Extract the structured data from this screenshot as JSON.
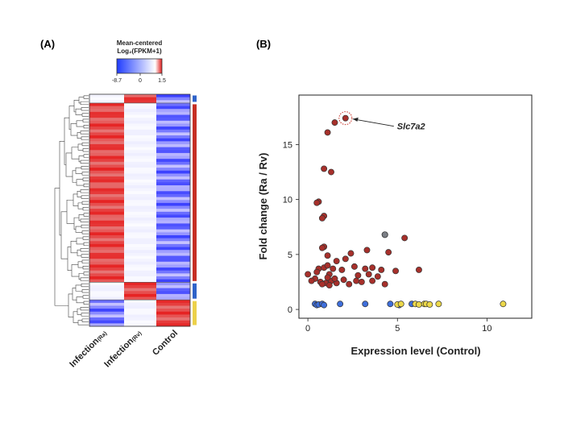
{
  "chart_data": [
    {
      "panel": "(A)",
      "type": "heatmap",
      "legend": {
        "title_line1": "Mean-centered",
        "title_line2": "Log₂(FPKM+1)",
        "ticks": [
          "-8.7",
          "0",
          "1.5"
        ],
        "colors": {
          "low": "#1f3cff",
          "mid": "#ffffff",
          "high": "#e01919"
        }
      },
      "columns": [
        {
          "main": "Infection",
          "sub": "(Ra)"
        },
        {
          "main": "Infection",
          "sub": "(Rv)"
        },
        {
          "main": "Control",
          "sub": ""
        }
      ],
      "cluster_colors": [
        "#2f63c9",
        "#c62f23",
        "#2f63c9",
        "#ecd14a"
      ],
      "cluster_sizes": [
        3,
        61,
        6,
        9
      ]
    },
    {
      "panel": "(B)",
      "type": "scatter",
      "xlabel": "Expression level (Control)",
      "ylabel": "Fold change (Ra / Rv)",
      "xlim": [
        -0.5,
        12.5
      ],
      "ylim": [
        -0.8,
        19.5
      ],
      "xticks": [
        0,
        5,
        10
      ],
      "yticks": [
        0,
        5,
        10,
        15
      ],
      "annotation": {
        "text": "Slc7a2",
        "x": 2.1,
        "y": 17.4
      },
      "series": [
        {
          "color": "#a7302b",
          "points": [
            [
              2.1,
              17.4
            ],
            [
              1.5,
              17.0
            ],
            [
              1.1,
              16.1
            ],
            [
              0.9,
              12.8
            ],
            [
              1.3,
              12.5
            ],
            [
              0.6,
              9.8
            ],
            [
              0.5,
              9.7
            ],
            [
              0.9,
              8.5
            ],
            [
              0.8,
              8.3
            ],
            [
              0.9,
              5.7
            ],
            [
              0.8,
              5.6
            ],
            [
              5.4,
              6.5
            ],
            [
              4.3,
              6.8
            ],
            [
              4.5,
              5.2
            ],
            [
              3.3,
              5.4
            ],
            [
              2.4,
              5.1
            ],
            [
              1.1,
              4.9
            ],
            [
              2.1,
              4.6
            ],
            [
              1.6,
              4.4
            ],
            [
              6.2,
              3.6
            ],
            [
              0.6,
              3.7
            ],
            [
              0.9,
              3.8
            ],
            [
              1.1,
              4.0
            ],
            [
              1.4,
              3.7
            ],
            [
              1.9,
              3.6
            ],
            [
              2.6,
              3.9
            ],
            [
              3.2,
              3.7
            ],
            [
              3.6,
              3.8
            ],
            [
              4.1,
              3.6
            ],
            [
              4.9,
              3.5
            ],
            [
              0.5,
              3.4
            ],
            [
              1.2,
              3.2
            ],
            [
              2.8,
              3.1
            ],
            [
              3.4,
              3.2
            ],
            [
              3.9,
              3.0
            ],
            [
              0.0,
              3.2
            ],
            [
              0.4,
              2.8
            ],
            [
              0.7,
              2.5
            ],
            [
              0.2,
              2.6
            ],
            [
              1.0,
              2.4
            ],
            [
              1.3,
              2.6
            ],
            [
              1.6,
              2.4
            ],
            [
              2.0,
              2.7
            ],
            [
              2.3,
              2.3
            ],
            [
              2.7,
              2.6
            ],
            [
              3.0,
              2.5
            ],
            [
              3.6,
              2.6
            ],
            [
              1.1,
              2.9
            ],
            [
              1.5,
              2.8
            ],
            [
              0.8,
              2.3
            ],
            [
              1.2,
              2.2
            ],
            [
              4.3,
              2.3
            ]
          ]
        },
        {
          "color": "#7b7f86",
          "points": [
            [
              4.3,
              6.8
            ]
          ]
        },
        {
          "color": "#3f6fdb",
          "points": [
            [
              0.4,
              0.5
            ],
            [
              0.5,
              0.4
            ],
            [
              0.6,
              0.45
            ],
            [
              0.8,
              0.5
            ],
            [
              0.9,
              0.4
            ],
            [
              1.8,
              0.5
            ],
            [
              3.2,
              0.5
            ],
            [
              4.6,
              0.5
            ],
            [
              5.1,
              0.4
            ],
            [
              5.8,
              0.5
            ]
          ]
        },
        {
          "color": "#ecd84a",
          "points": [
            [
              5.0,
              0.45
            ],
            [
              5.2,
              0.5
            ],
            [
              6.0,
              0.5
            ],
            [
              6.2,
              0.45
            ],
            [
              6.5,
              0.5
            ],
            [
              6.6,
              0.5
            ],
            [
              6.8,
              0.45
            ],
            [
              7.3,
              0.5
            ],
            [
              10.9,
              0.5
            ]
          ]
        }
      ]
    }
  ]
}
